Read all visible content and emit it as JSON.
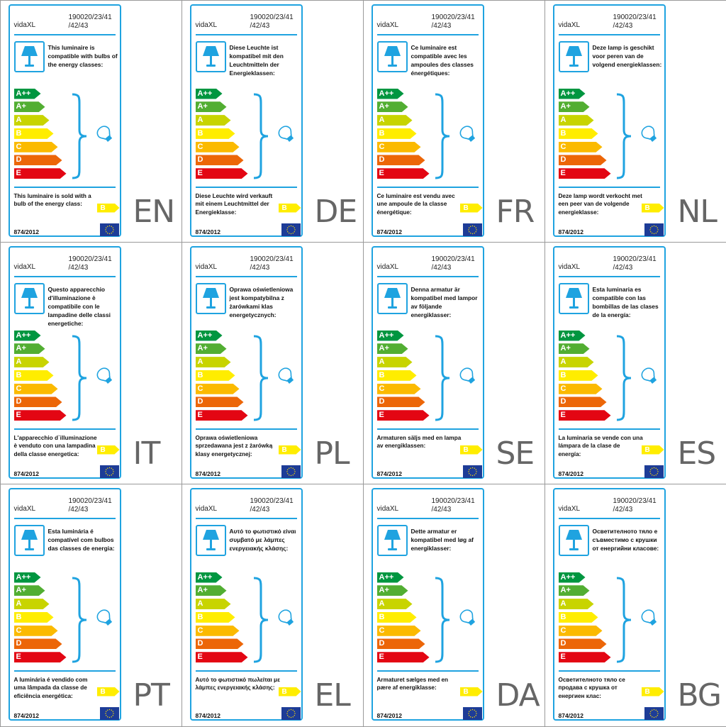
{
  "common": {
    "brand": "vidaXL",
    "code_line1": "190020/23/41",
    "code_line2": "/42/43",
    "regulation": "874/2012",
    "bulb_class": "B",
    "energy_classes": [
      "A++",
      "A+",
      "A",
      "B",
      "C",
      "D",
      "E"
    ],
    "class_colors": [
      "#009640",
      "#52ae32",
      "#c8d400",
      "#ffed00",
      "#fbba00",
      "#ec6608",
      "#e30613"
    ],
    "accent_color": "#1fa3e0",
    "icons": [
      "table-lamp-icon",
      "brace-icon",
      "light-bulb-icon",
      "eu-flag-icon"
    ]
  },
  "labels": [
    {
      "lang": "EN",
      "top_text": "This luminaire is compatible with bulbs of the energy classes:",
      "bottom_text": "This luminaire is sold with a bulb of the energy class:"
    },
    {
      "lang": "DE",
      "top_text": "Diese Leuchte ist kompatibel mit den Leuchtmitteln der Energieklassen:",
      "bottom_text": "Diese Leuchte wird verkauft mit einem Leuchtmittel der Energieklasse:"
    },
    {
      "lang": "FR",
      "top_text": "Ce luminaire est compatible avec les ampoules des classes énergétiques:",
      "bottom_text": "Ce luminaire est vendu avec une ampoule de la classe énergétique:"
    },
    {
      "lang": "NL",
      "top_text": "Deze lamp is geschikt voor peren van de volgend energieklassen:",
      "bottom_text": "Deze lamp wordt verkocht met een peer van de volgende energieklasse:"
    },
    {
      "lang": "IT",
      "top_text": "Questo apparecchio d'illuminazione è compatibile con le lampadine delle classi energetiche:",
      "bottom_text": "L'apparecchio d`illuminazione è venduto con una lampadina della classe energetica:"
    },
    {
      "lang": "PL",
      "top_text": "Oprawa oświetleniowa jest kompatybilna z żarówkami klas energetycznych:",
      "bottom_text": "Oprawa oświetleniowa sprzedawana jest z żarówką klasy energetycznej:"
    },
    {
      "lang": "SE",
      "top_text": "Denna armatur är kompatibel med lampor av följande energiklasser:",
      "bottom_text": "Armaturen säljs med en lampa av energiklassen:"
    },
    {
      "lang": "ES",
      "top_text": "Esta luminaria es compatible con las bombillas de las clases de la energía:",
      "bottom_text": "La luminaria se vende con una lámpara de la clase de energía:"
    },
    {
      "lang": "PT",
      "top_text": "Esta luminária é compatível com bulbos das classes de energia:",
      "bottom_text": "A luminária é vendido com uma lâmpada da classe de eficiência energética:"
    },
    {
      "lang": "EL",
      "top_text": "Αυτό το φωτιστικό είναι συμβατό με λάμπες ενεργειακής κλάσης:",
      "bottom_text": "Αυτό το φωτιστικό πωλείται με λάμπες ενεργειακής κλάσης:"
    },
    {
      "lang": "DA",
      "top_text": "Dette armatur er kompatibel med løg af energiklasser:",
      "bottom_text": "Armaturet sælges med en pære af energiklasse:"
    },
    {
      "lang": "BG",
      "top_text": "Осветителното тяло е съвместимо с крушки от енергийни класове:",
      "bottom_text": "Осветителното тяло се продава с крушка от енергиен клас:"
    }
  ]
}
